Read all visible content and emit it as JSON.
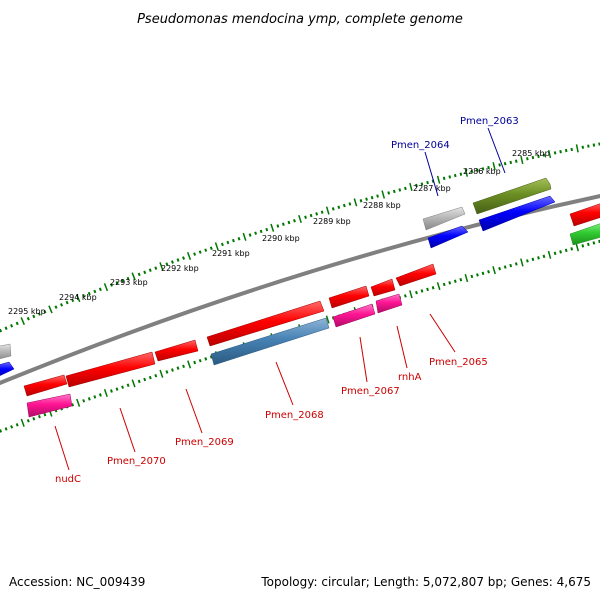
{
  "title": "Pseudomonas mendocina ymp, complete genome",
  "footer": {
    "accession": "Accession: NC_009439",
    "topology": "Topology: circular; Length: 5,072,807 bp; Genes: 4,675"
  },
  "kbp_labels": [
    "2285 kbp",
    "2286 kbp",
    "2287 kbp",
    "2288 kbp",
    "2289 kbp",
    "2290 kbp",
    "2291 kbp",
    "2292 kbp",
    "2293 kbp",
    "2294 kbp",
    "2295 kbp"
  ],
  "gene_labels": {
    "pmen_2063": "Pmen_2063",
    "pmen_2064": "Pmen_2064",
    "pmen_2065": "Pmen_2065",
    "rnha": "rnhA",
    "pmen_2067": "Pmen_2067",
    "pmen_2068": "Pmen_2068",
    "pmen_2069": "Pmen_2069",
    "pmen_2070": "Pmen_2070",
    "nudc": "nudC"
  },
  "colors": {
    "red": "#ff0000",
    "pink": "#ff1493",
    "blue": "#0000ff",
    "steelblue": "#4682b4",
    "olive": "#6b8e23",
    "gray": "#b0b0b0",
    "green": "#32cd32",
    "backbone": "#808080",
    "ticks": "#007700"
  }
}
